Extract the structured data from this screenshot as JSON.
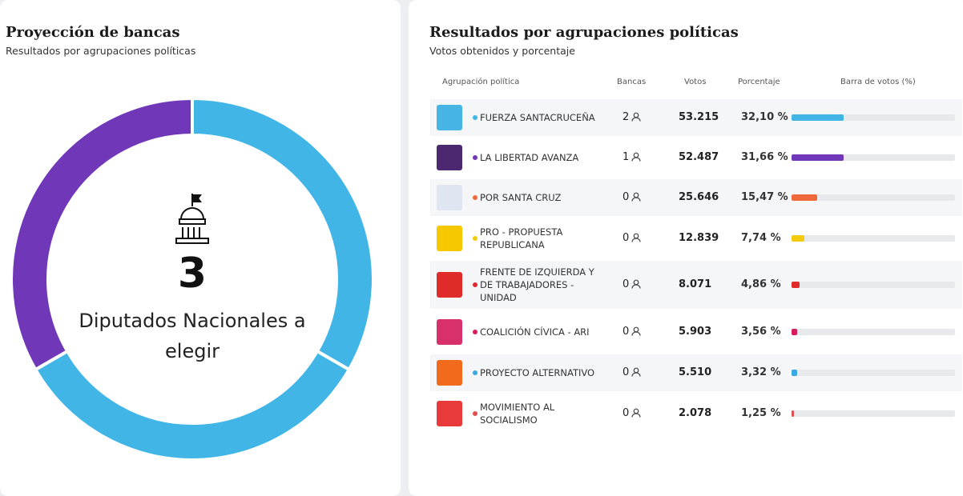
{
  "left": {
    "title": "Proyección de bancas",
    "subtitle": "Resultados por agrupaciones políticas",
    "total": 3,
    "total_label": "Diputados Nacionales a elegir"
  },
  "right": {
    "title": "Resultados por agrupaciones políticas",
    "subtitle": "Votos obtenidos y porcentaje",
    "columns": [
      "Agrupación política",
      "Bancas",
      "Votos",
      "Porcentaje",
      "Barra de votos (%)"
    ],
    "bar_range": [
      0,
      100
    ],
    "rows": [
      {
        "name": "FUERZA SANTACRUCEÑA",
        "seats": 2,
        "votes": "53.215",
        "percent": 32.1,
        "percent_label": "32,10 %",
        "color": "#41b6e6"
      },
      {
        "name": "LA LIBERTAD AVANZA",
        "seats": 1,
        "votes": "52.487",
        "percent": 31.66,
        "percent_label": "31,66 %",
        "color": "#7038b8"
      },
      {
        "name": "POR SANTA CRUZ",
        "seats": 0,
        "votes": "25.646",
        "percent": 15.47,
        "percent_label": "15,47 %",
        "color": "#f0693c"
      },
      {
        "name": "PRO - PROPUESTA REPUBLICANA",
        "seats": 0,
        "votes": "12.839",
        "percent": 7.74,
        "percent_label": "7,74 %",
        "color": "#f2cc0c"
      },
      {
        "name": "FRENTE DE IZQUIERDA Y DE TRABAJADORES - UNIDAD",
        "seats": 0,
        "votes": "8.071",
        "percent": 4.86,
        "percent_label": "4,86 %",
        "color": "#e02b2b"
      },
      {
        "name": "COALICIÓN CÍVICA - ARI",
        "seats": 0,
        "votes": "5.903",
        "percent": 3.56,
        "percent_label": "3,56 %",
        "color": "#d81b5a"
      },
      {
        "name": "PROYECTO ALTERNATIVO",
        "seats": 0,
        "votes": "5.510",
        "percent": 3.32,
        "percent_label": "3,32 %",
        "color": "#3aa8e0"
      },
      {
        "name": "MOVIMIENTO AL SOCIALISMO",
        "seats": 0,
        "votes": "2.078",
        "percent": 1.25,
        "percent_label": "1,25 %",
        "color": "#e05050"
      }
    ]
  }
}
